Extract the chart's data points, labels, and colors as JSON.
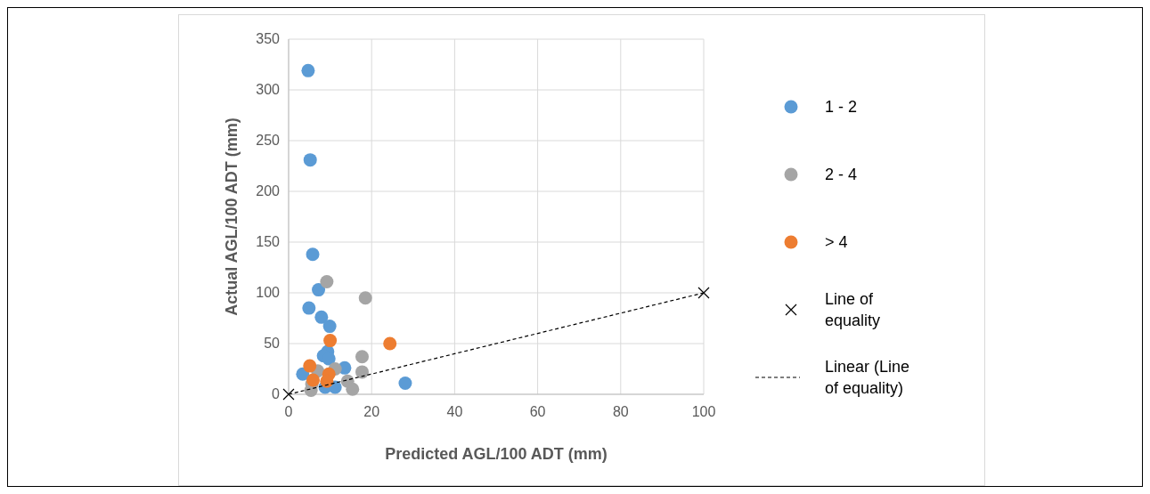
{
  "chart_data": {
    "type": "scatter",
    "xlabel": "Predicted AGL/100 ADT (mm)",
    "ylabel": "Actual AGL/100 ADT (mm)",
    "xlim": [
      0,
      100
    ],
    "xticks": [
      0,
      20,
      40,
      60,
      80,
      100
    ],
    "ylim": [
      0,
      350
    ],
    "yticks": [
      0,
      50,
      100,
      150,
      200,
      250,
      300,
      350
    ],
    "grid": true,
    "legend": "right",
    "marker": "circle",
    "series": [
      {
        "name": "1 - 2",
        "color": "#5b9bd5",
        "x": [
          4.7,
          5.2,
          5.8,
          7.2,
          4.9,
          7.9,
          9.9,
          9.4,
          8.4,
          9.7,
          3.4,
          13.5,
          8.8,
          11.2,
          28.1
        ],
        "values": [
          319,
          231,
          138,
          103,
          85,
          76,
          67,
          42,
          38,
          35,
          20,
          26,
          7,
          7,
          11
        ]
      },
      {
        "name": "2 - 4",
        "color": "#a5a5a5",
        "x": [
          9.2,
          18.5,
          17.7,
          17.7,
          11.2,
          14.2,
          15.4,
          5.4,
          7,
          5.6
        ],
        "values": [
          111,
          95,
          37,
          22,
          25,
          13,
          5,
          4,
          23,
          10
        ]
      },
      {
        "name": "> 4",
        "color": "#ed7d31",
        "x": [
          10,
          24.4,
          5.1,
          5.9,
          9.7,
          9.2
        ],
        "values": [
          53,
          50,
          28,
          14,
          20,
          13
        ]
      },
      {
        "name": "Line of equality",
        "color": "#000000",
        "marker": "cross",
        "x": [
          0,
          100
        ],
        "values": [
          0,
          100
        ]
      },
      {
        "name": "Linear (Line of equality)",
        "type": "line",
        "color": "#000000",
        "line_style": "dashed",
        "marker": "none",
        "x": [
          0,
          100
        ],
        "values": [
          0,
          100
        ]
      }
    ]
  }
}
